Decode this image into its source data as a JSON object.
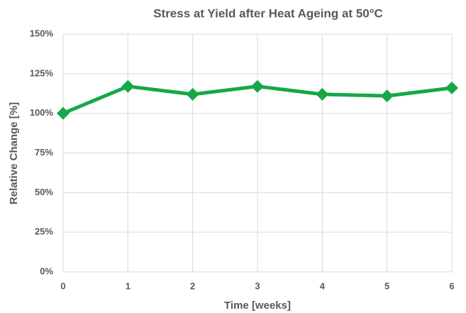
{
  "chart_data": {
    "type": "line",
    "title": "Stress at Yield after Heat Ageing at 50°C",
    "xlabel": "Time [weeks]",
    "ylabel": "Relative Change [%]",
    "x": [
      0,
      1,
      2,
      3,
      4,
      5,
      6
    ],
    "series": [
      {
        "name": "Stress at Yield",
        "color": "#16a846",
        "values": [
          100,
          117,
          112,
          117,
          112,
          111,
          116
        ]
      }
    ],
    "xlim": [
      0,
      6
    ],
    "xticks": [
      0,
      1,
      2,
      3,
      4,
      5,
      6
    ],
    "ylim": [
      0,
      150
    ],
    "yticks": [
      {
        "value": 0,
        "label": "0%"
      },
      {
        "value": 25,
        "label": "25%"
      },
      {
        "value": 50,
        "label": "50%"
      },
      {
        "value": 75,
        "label": "75%"
      },
      {
        "value": 100,
        "label": "100%"
      },
      {
        "value": 125,
        "label": "125%"
      },
      {
        "value": 150,
        "label": "150%"
      }
    ],
    "grid": true
  }
}
